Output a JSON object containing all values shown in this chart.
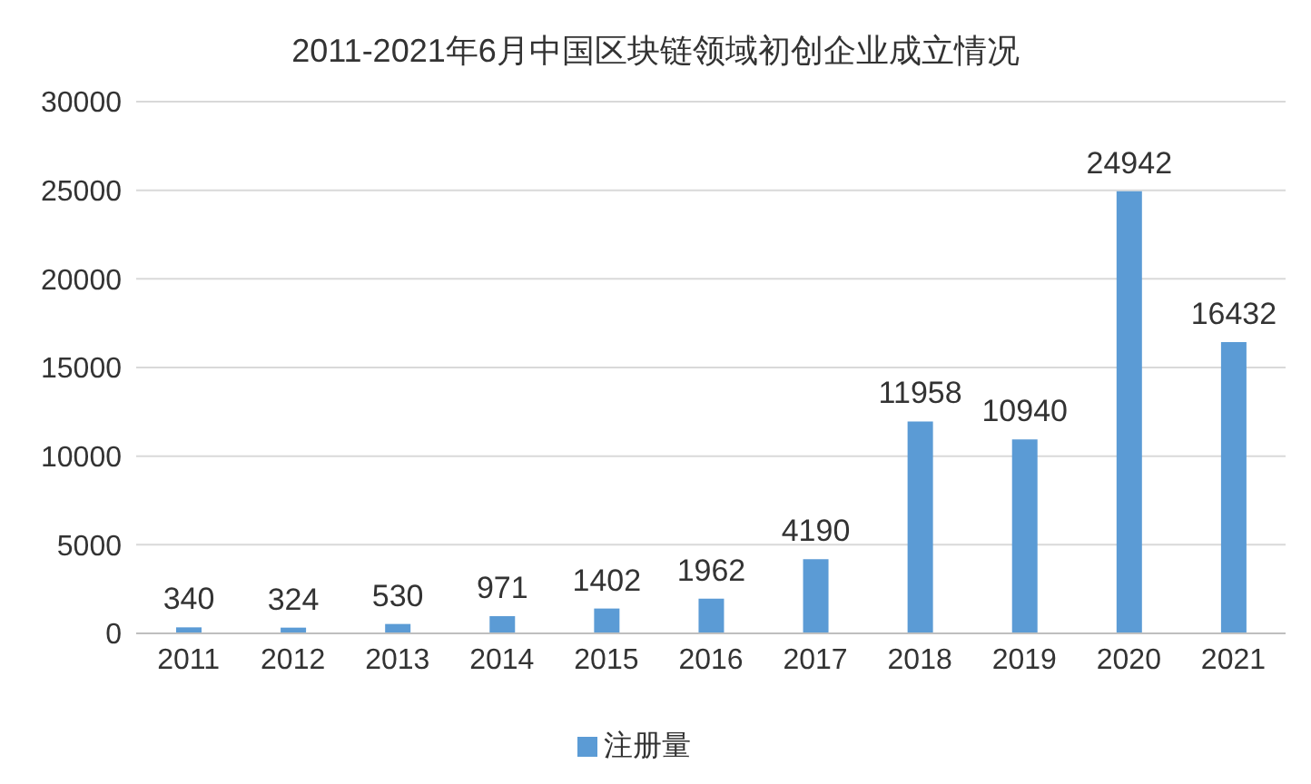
{
  "chart_data": {
    "type": "bar",
    "title": "2011-2021年6月中国区块链领域初创企业成立情况",
    "categories": [
      "2011",
      "2012",
      "2013",
      "2014",
      "2015",
      "2016",
      "2017",
      "2018",
      "2019",
      "2020",
      "2021"
    ],
    "series": [
      {
        "name": "注册量",
        "color": "#5b9bd5",
        "values": [
          340,
          324,
          530,
          971,
          1402,
          1962,
          4190,
          11958,
          10940,
          24942,
          16432
        ]
      }
    ],
    "ylim": [
      0,
      30000
    ],
    "yticks": [
      0,
      5000,
      10000,
      15000,
      20000,
      25000,
      30000
    ],
    "grid": "y",
    "legend": "bottom",
    "data_labels": true
  }
}
